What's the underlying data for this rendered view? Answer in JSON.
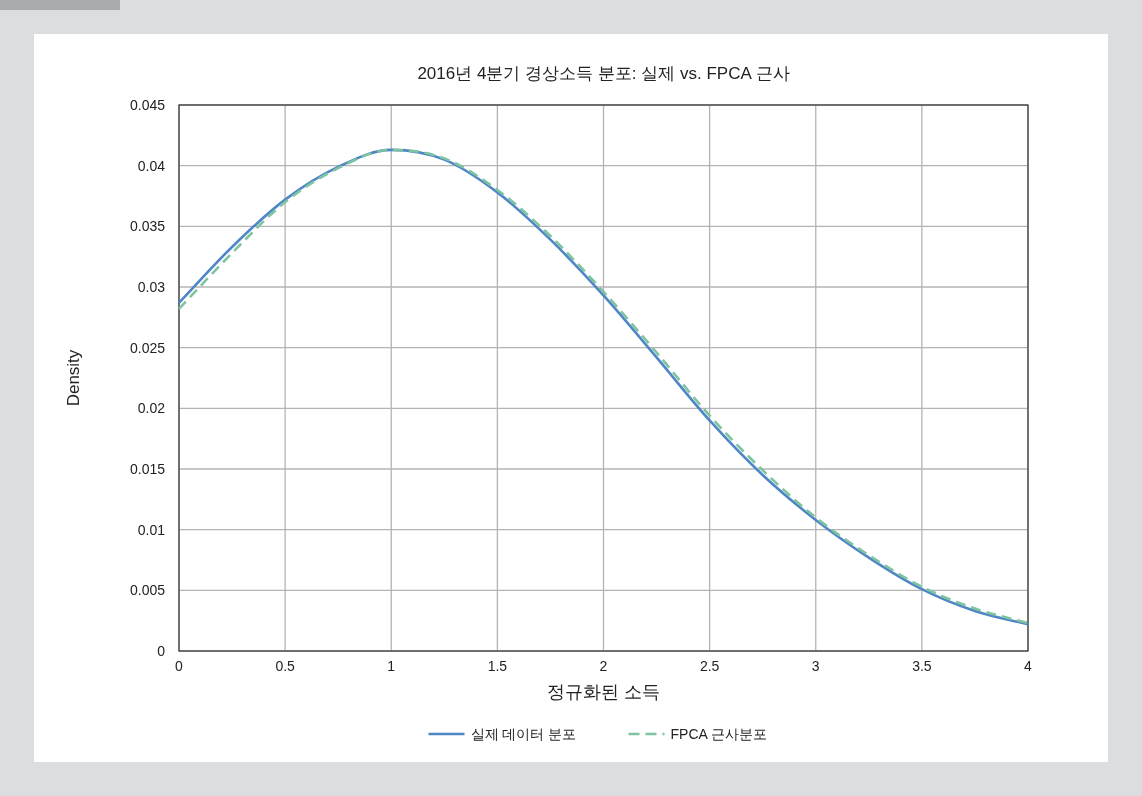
{
  "chart_data": {
    "type": "line",
    "title": "2016년 4분기 경상소득 분포: 실제 vs. FPCA 근사",
    "xlabel": "정규화된 소득",
    "ylabel": "Density",
    "x": [
      0,
      0.25,
      0.5,
      0.75,
      1,
      1.25,
      1.5,
      1.75,
      2,
      2.25,
      2.5,
      2.75,
      3,
      3.25,
      3.5,
      3.75,
      4
    ],
    "series": [
      {
        "name": "실제 데이터 분포",
        "color": "#4f86c6",
        "line_style": "solid",
        "values": [
          0.0287,
          0.0333,
          0.0372,
          0.0399,
          0.0413,
          0.0405,
          0.0378,
          0.0339,
          0.0293,
          0.0242,
          0.019,
          0.0145,
          0.0108,
          0.0077,
          0.0051,
          0.0033,
          0.0022
        ]
      },
      {
        "name": "FPCA 근사분포",
        "color": "#7ec4a0",
        "line_style": "dashed",
        "values": [
          0.0282,
          0.0328,
          0.037,
          0.0398,
          0.0413,
          0.0406,
          0.038,
          0.0342,
          0.0296,
          0.0246,
          0.0194,
          0.0149,
          0.011,
          0.0079,
          0.0053,
          0.0035,
          0.0023
        ]
      }
    ],
    "xlim": [
      0,
      4
    ],
    "xticks": [
      0,
      0.5,
      1,
      1.5,
      2,
      2.5,
      3,
      3.5,
      4
    ],
    "ylim": [
      0,
      0.045
    ],
    "yticks": [
      0,
      0.005,
      0.01,
      0.015,
      0.02,
      0.025,
      0.03,
      0.035,
      0.04,
      0.045
    ],
    "grid": true,
    "legend": "bottom",
    "marker": "none"
  }
}
